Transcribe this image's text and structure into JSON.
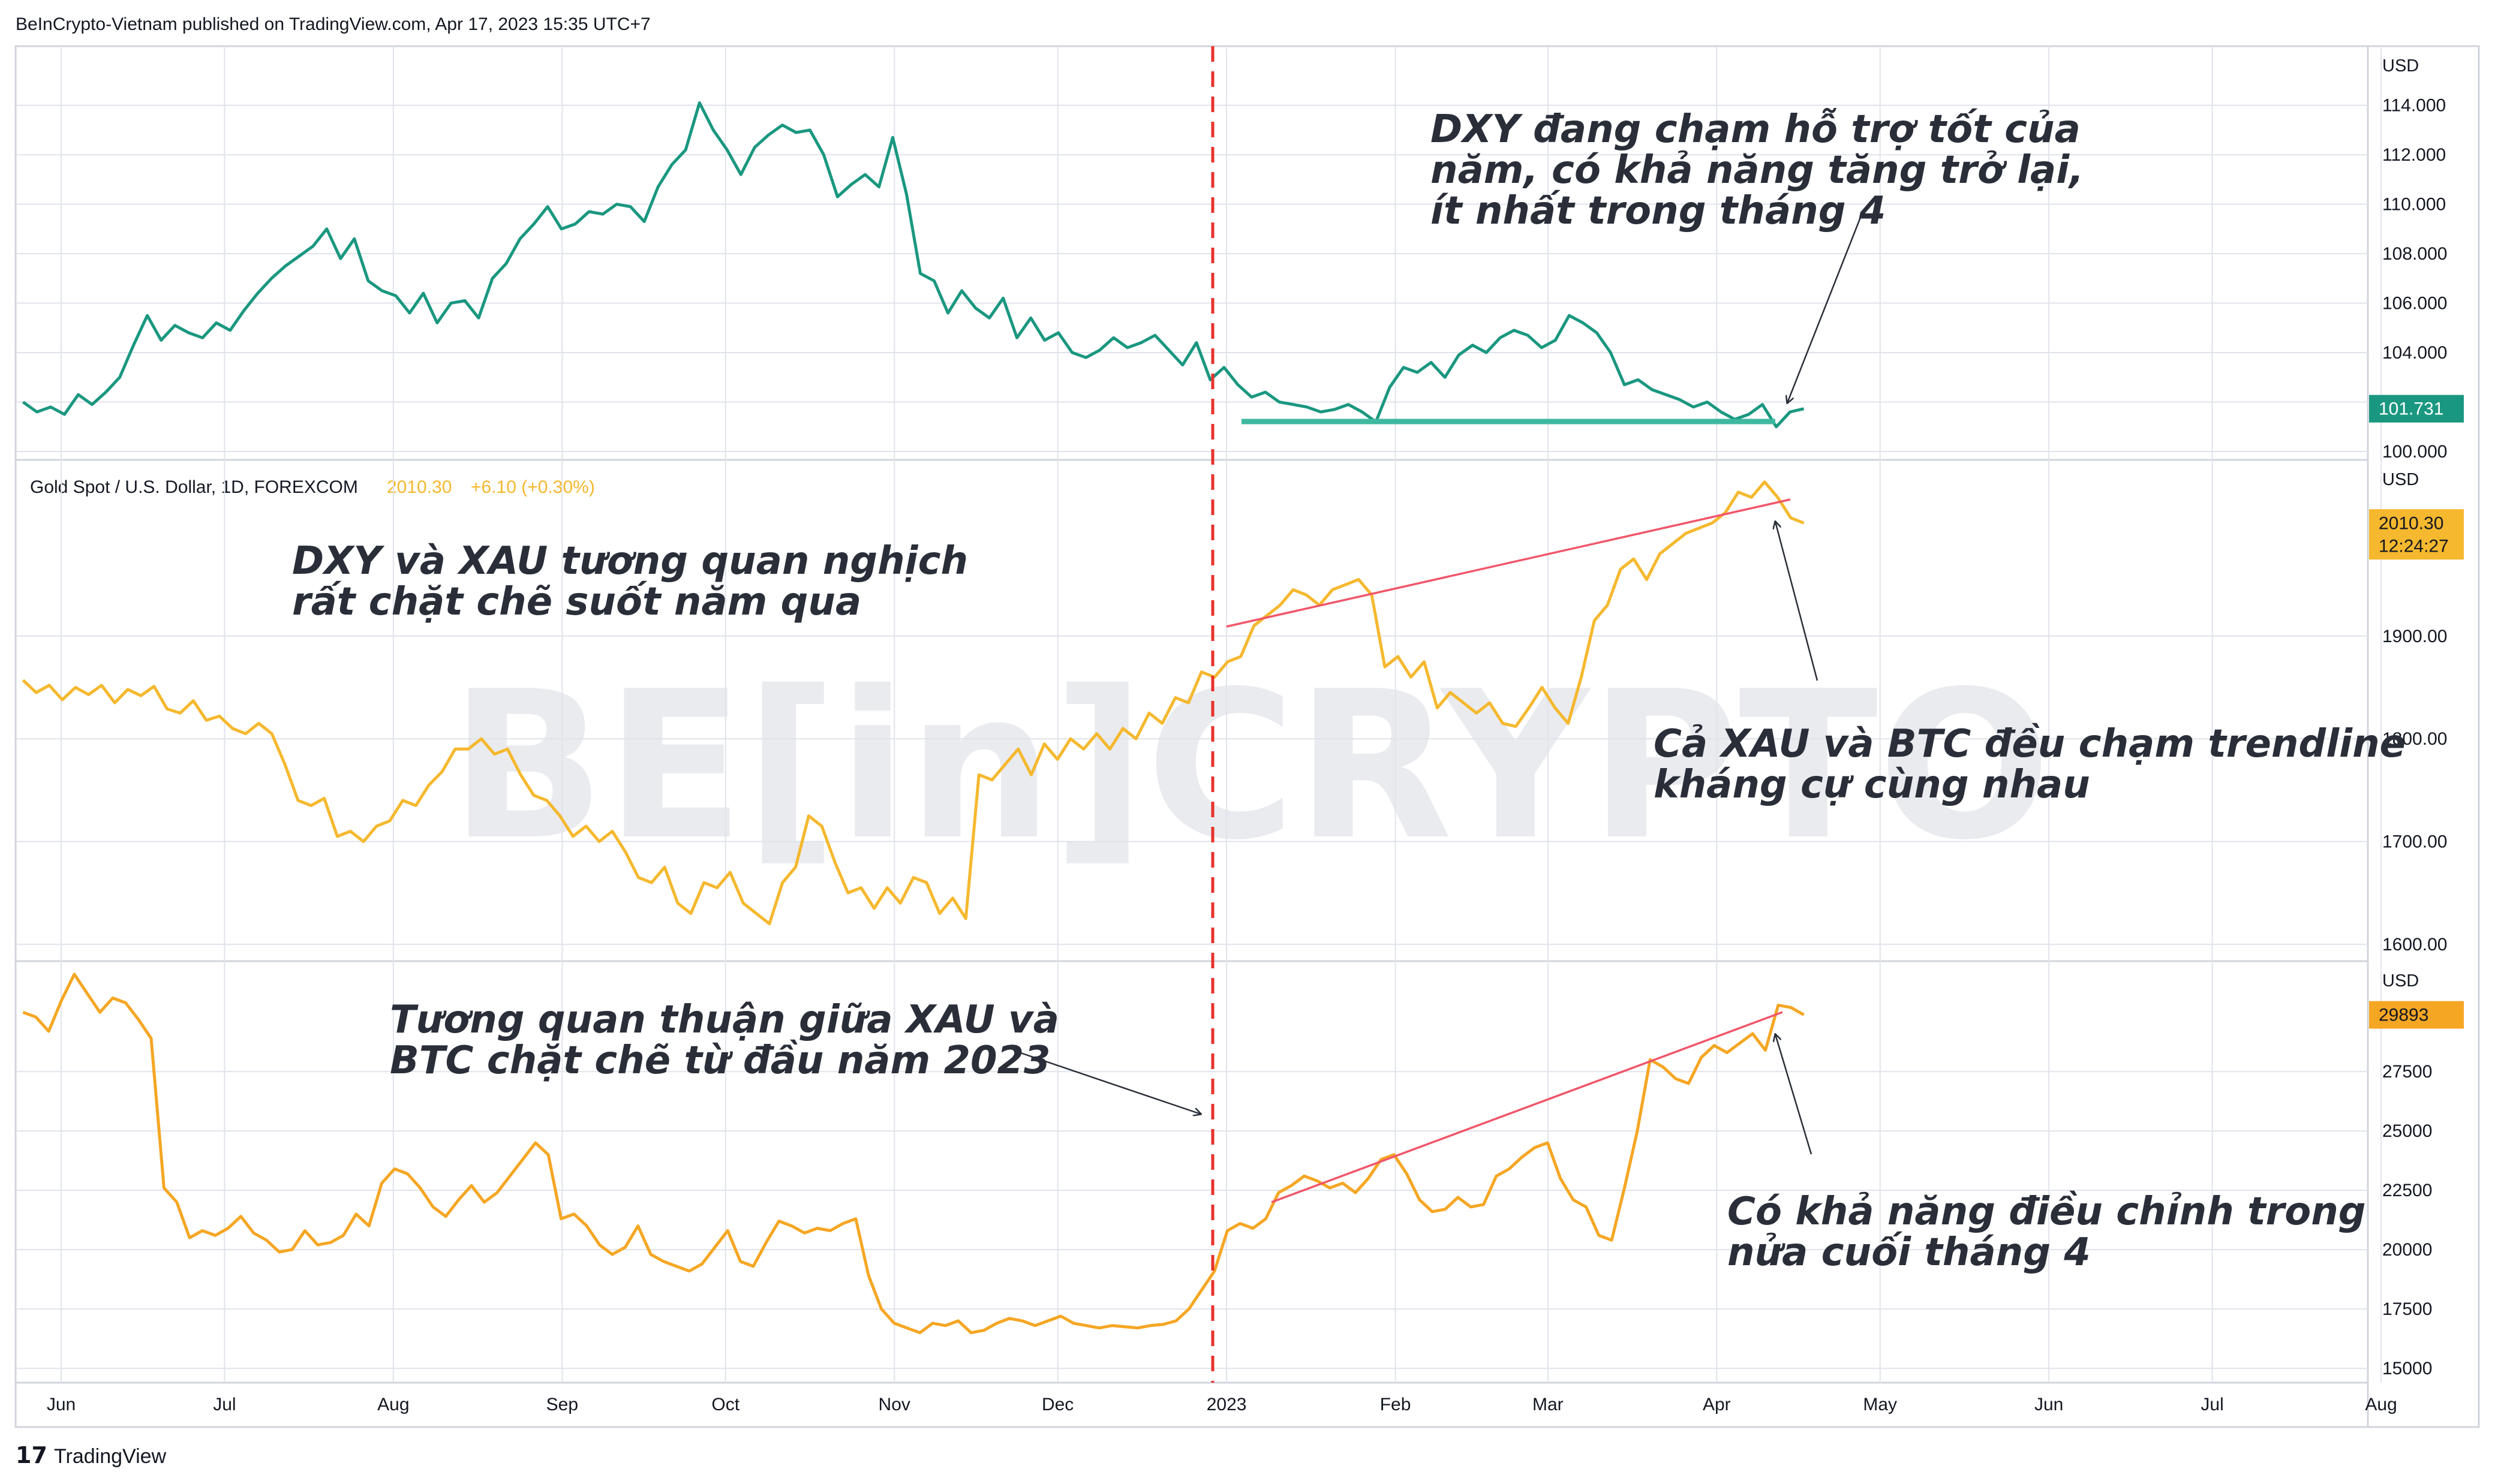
{
  "header": {
    "publisher": "BeInCrypto-Vietnam published on TradingView.com, Apr 17, 2023 15:35 UTC+7"
  },
  "footer": {
    "brand": "TradingView"
  },
  "watermark": "BE[in]CRYPTO",
  "colors": {
    "dxy": "#1a9780",
    "xau": "#f5b82e",
    "btc": "#f5a623",
    "trendline": "#f0566a",
    "support": "#3fb8a0",
    "dashed": "#e8312d",
    "grid": "#e0e3eb"
  },
  "x_axis": {
    "labels": [
      "Jun",
      "Jul",
      "Aug",
      "Sep",
      "Oct",
      "Nov",
      "Dec",
      "2023",
      "Feb",
      "Mar",
      "Apr",
      "May",
      "Jun",
      "Jul",
      "Aug"
    ]
  },
  "chart_data": [
    {
      "type": "line",
      "title": "",
      "unit": "USD",
      "ylim": [
        100,
        114.5
      ],
      "yticks": [
        "100.000",
        "102.000",
        "104.000",
        "106.000",
        "108.000",
        "110.000",
        "112.000",
        "114.000"
      ],
      "last_value": "101.731",
      "x_start": "2022-05-25",
      "x_end": "2023-04-17",
      "values": [
        102.0,
        101.6,
        101.8,
        101.5,
        102.3,
        101.9,
        102.4,
        103.0,
        104.3,
        105.5,
        104.5,
        105.1,
        104.8,
        104.6,
        105.2,
        104.9,
        105.7,
        106.4,
        107.0,
        107.5,
        107.9,
        108.3,
        109.0,
        107.8,
        108.6,
        106.9,
        106.5,
        106.3,
        105.6,
        106.4,
        105.2,
        106.0,
        106.1,
        105.4,
        107.0,
        107.6,
        108.6,
        109.2,
        109.9,
        109.0,
        109.2,
        109.7,
        109.6,
        110.0,
        109.9,
        109.3,
        110.7,
        111.6,
        112.2,
        114.1,
        113.0,
        112.2,
        111.2,
        112.3,
        112.8,
        113.2,
        112.9,
        113.0,
        112.0,
        110.3,
        110.8,
        111.2,
        110.7,
        112.7,
        110.4,
        107.2,
        106.9,
        105.6,
        106.5,
        105.8,
        105.4,
        106.2,
        104.6,
        105.4,
        104.5,
        104.8,
        104.0,
        103.8,
        104.1,
        104.6,
        104.2,
        104.4,
        104.7,
        104.1,
        103.5,
        104.4,
        102.9,
        103.4,
        102.7,
        102.2,
        102.4,
        102.0,
        101.9,
        101.8,
        101.6,
        101.7,
        101.9,
        101.6,
        101.2,
        102.6,
        103.4,
        103.2,
        103.6,
        103.0,
        103.9,
        104.3,
        104.0,
        104.6,
        104.9,
        104.7,
        104.2,
        104.5,
        105.5,
        105.2,
        104.8,
        104.0,
        102.7,
        102.9,
        102.5,
        102.3,
        102.1,
        101.8,
        102.0,
        101.6,
        101.3,
        101.5,
        101.9,
        101.0,
        101.6,
        101.73
      ]
    },
    {
      "type": "line",
      "title": "Gold Spot / U.S. Dollar, 1D, FOREXCOM",
      "price_label": "2010.30",
      "change_label": "+6.10 (+0.30%)",
      "unit": "USD",
      "ylim": [
        1590,
        2065
      ],
      "yticks": [
        "1600.00",
        "1700.00",
        "1800.00",
        "1900.00"
      ],
      "last_value": "2010.30",
      "countdown": "12:24:27",
      "x_start": "2022-05-25",
      "x_end": "2023-04-17",
      "values": [
        1857,
        1845,
        1852,
        1838,
        1850,
        1843,
        1852,
        1835,
        1848,
        1842,
        1851,
        1829,
        1825,
        1837,
        1818,
        1822,
        1810,
        1805,
        1815,
        1805,
        1775,
        1740,
        1735,
        1742,
        1705,
        1710,
        1700,
        1715,
        1720,
        1740,
        1735,
        1755,
        1768,
        1790,
        1790,
        1800,
        1785,
        1790,
        1765,
        1745,
        1740,
        1725,
        1705,
        1715,
        1700,
        1710,
        1690,
        1665,
        1660,
        1675,
        1640,
        1630,
        1660,
        1655,
        1670,
        1640,
        1630,
        1620,
        1660,
        1675,
        1725,
        1715,
        1680,
        1650,
        1655,
        1635,
        1655,
        1640,
        1665,
        1660,
        1630,
        1645,
        1625,
        1765,
        1760,
        1775,
        1790,
        1765,
        1795,
        1780,
        1800,
        1790,
        1805,
        1790,
        1810,
        1800,
        1825,
        1815,
        1840,
        1835,
        1865,
        1860,
        1875,
        1880,
        1910,
        1920,
        1930,
        1945,
        1940,
        1930,
        1945,
        1950,
        1955,
        1940,
        1870,
        1880,
        1860,
        1875,
        1830,
        1845,
        1835,
        1825,
        1835,
        1815,
        1812,
        1830,
        1850,
        1830,
        1815,
        1860,
        1915,
        1930,
        1965,
        1975,
        1955,
        1980,
        1990,
        2000,
        2005,
        2010,
        2020,
        2040,
        2035,
        2050,
        2035,
        2015,
        2010
      ]
    },
    {
      "type": "line",
      "title": "",
      "unit": "USD",
      "ylim": [
        14800,
        31800
      ],
      "yticks": [
        "15000",
        "17500",
        "20000",
        "22500",
        "25000",
        "27500"
      ],
      "last_value": "29893",
      "x_start": "2022-05-25",
      "x_end": "2023-04-17",
      "values": [
        30000,
        29800,
        29200,
        30500,
        31600,
        30800,
        30000,
        30600,
        30400,
        29700,
        28900,
        22600,
        22000,
        20500,
        20800,
        20600,
        20900,
        21400,
        20700,
        20400,
        19900,
        20000,
        20800,
        20200,
        20300,
        20600,
        21500,
        21000,
        22800,
        23400,
        23200,
        22600,
        21800,
        21400,
        22100,
        22700,
        22000,
        22400,
        23100,
        23800,
        24500,
        24000,
        21300,
        21500,
        21000,
        20200,
        19800,
        20100,
        21000,
        19800,
        19500,
        19300,
        19100,
        19400,
        20100,
        20800,
        19500,
        19300,
        20300,
        21200,
        21000,
        20700,
        20900,
        20800,
        21100,
        21300,
        18900,
        17500,
        16900,
        16700,
        16500,
        16900,
        16800,
        17000,
        16500,
        16600,
        16900,
        17100,
        17000,
        16800,
        17000,
        17200,
        16900,
        16800,
        16700,
        16800,
        16750,
        16700,
        16800,
        16850,
        17000,
        17500,
        18300,
        19100,
        20800,
        21100,
        20900,
        21300,
        22400,
        22700,
        23100,
        22900,
        22600,
        22800,
        22400,
        23000,
        23800,
        24000,
        23200,
        22100,
        21600,
        21700,
        22200,
        21800,
        21900,
        23100,
        23400,
        23900,
        24300,
        24500,
        23000,
        22100,
        21800,
        20600,
        20400,
        22600,
        25000,
        28000,
        27700,
        27200,
        27000,
        28100,
        28600,
        28300,
        28700,
        29100,
        28400,
        30300,
        30200,
        29890
      ]
    }
  ],
  "annotations": {
    "dxy_note": [
      "DXY đang chạm hỗ trợ tốt của",
      "năm, có khả năng tăng trở lại,",
      "ít nhất trong tháng 4"
    ],
    "inverse_note": [
      "DXY và XAU tương quan nghịch",
      "rất chặt chẽ suốt năm qua"
    ],
    "trendline_note": [
      "Cả XAU và BTC đều chạm trendline",
      "kháng cự cùng nhau"
    ],
    "positive_note": [
      "Tương quan thuận giữa XAU và",
      "BTC chặt chẽ từ đầu năm 2023"
    ],
    "pullback_note": [
      "Có khả năng điều chỉnh trong",
      "nửa cuối tháng 4"
    ]
  }
}
